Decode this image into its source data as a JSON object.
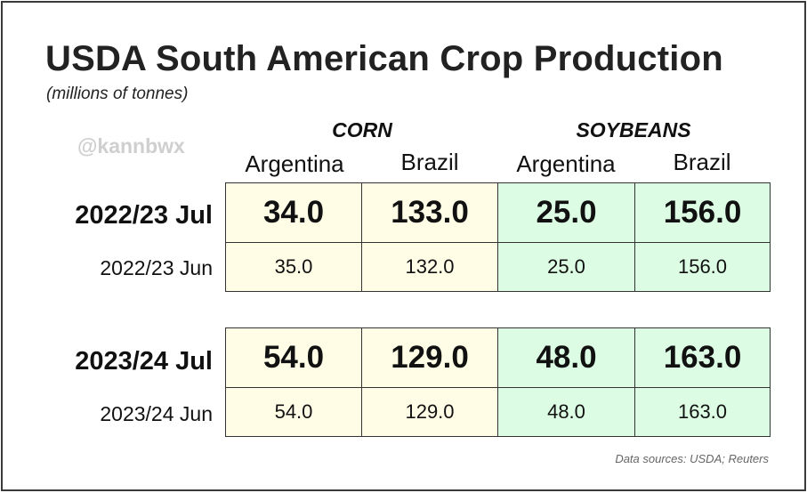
{
  "header": {
    "title": "USDA South American Crop Production",
    "subtitle": "(millions of tonnes)",
    "watermark": "@kannbwx"
  },
  "footer": {
    "source": "Data sources: USDA; Reuters"
  },
  "colors": {
    "corn_cell": "#fffde6",
    "soybean_cell": "#dcfce4",
    "watermark": "#cfcfcf"
  },
  "chart_data": {
    "type": "table",
    "title": "USDA South American Crop Production",
    "subtitle": "(millions of tonnes)",
    "column_groups": [
      {
        "name": "CORN",
        "columns": [
          "Argentina",
          "Brazil"
        ]
      },
      {
        "name": "SOYBEANS",
        "columns": [
          "Argentina",
          "Brazil"
        ]
      }
    ],
    "columns": [
      "Argentina",
      "Brazil",
      "Argentina",
      "Brazil"
    ],
    "rows": [
      {
        "label": "2022/23 Jul",
        "values": [
          "34.0",
          "133.0",
          "25.0",
          "156.0"
        ]
      },
      {
        "label": "2022/23 Jun",
        "values": [
          "35.0",
          "132.0",
          "25.0",
          "156.0"
        ]
      },
      {
        "label": "2023/24 Jul",
        "values": [
          "54.0",
          "129.0",
          "48.0",
          "163.0"
        ]
      },
      {
        "label": "2023/24 Jun",
        "values": [
          "54.0",
          "129.0",
          "48.0",
          "163.0"
        ]
      }
    ]
  }
}
